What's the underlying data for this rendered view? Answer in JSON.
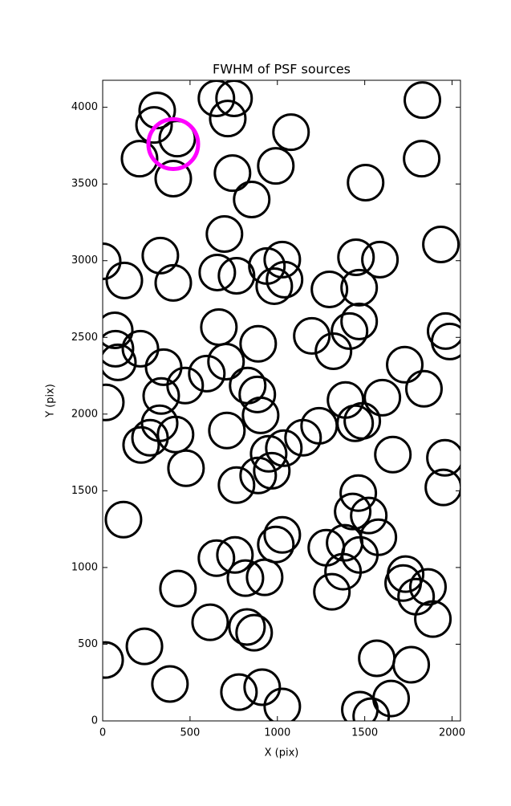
{
  "chart_data": {
    "type": "scatter",
    "title": "FWHM of PSF sources",
    "x_label": "X (pix)",
    "y_label": "Y (pix)",
    "xlim": [
      0,
      2048
    ],
    "ylim": [
      0,
      4176
    ],
    "xticks": [
      0,
      500,
      1000,
      1500,
      2000
    ],
    "yticks": [
      0,
      500,
      1000,
      1500,
      2000,
      2500,
      3000,
      3500,
      4000
    ],
    "grid": false,
    "series": [
      {
        "color": "#000000",
        "x": [
          312,
          294,
          427,
          211,
          404,
          651,
          752,
          716,
          1078,
          991,
          743,
          853,
          1830,
          1826,
          1505,
          697,
          1936,
          0,
          124,
          330,
          404,
          656,
          766,
          940,
          1028,
          982,
          1041,
          1298,
          1450,
          1468,
          1587,
          69,
          73,
          87,
          216,
          665,
          890,
          1197,
          1321,
          1413,
          1468,
          1963,
          1986,
          349,
          596,
          706,
          472,
          335,
          18,
          830,
          885,
          904,
          711,
          326,
          271,
          220,
          417,
          477,
          1147,
          1239,
          1390,
          1445,
          1486,
          1601,
          1729,
          1839,
          1661,
          1959,
          1950,
          1037,
          950,
          968,
          890,
          766,
          1463,
          1431,
          1523,
          119,
          1028,
          991,
          757,
          651,
          817,
          927,
          431,
          1280,
          1385,
          1472,
          1578,
          1376,
          1312,
          1734,
          1720,
          1862,
          1794,
          1890,
          615,
          826,
          867,
          239,
          14,
          1569,
          1766,
          385,
          780,
          913,
          1028,
          1472,
          1651,
          1537
        ],
        "y": [
          3979,
          3885,
          3796,
          3665,
          3535,
          4058,
          4058,
          3927,
          3838,
          3618,
          3571,
          3399,
          4047,
          3665,
          3509,
          3174,
          3106,
          2996,
          2871,
          3033,
          2855,
          2923,
          2902,
          2965,
          3007,
          2834,
          2876,
          2813,
          3022,
          2824,
          3007,
          2546,
          2426,
          2337,
          2426,
          2567,
          2458,
          2510,
          2410,
          2541,
          2604,
          2541,
          2473,
          2306,
          2264,
          2342,
          2186,
          2118,
          2076,
          2186,
          2128,
          1992,
          1893,
          1940,
          1846,
          1799,
          1867,
          1647,
          1846,
          1924,
          2092,
          1940,
          1956,
          2107,
          2322,
          2165,
          1736,
          1715,
          1522,
          1778,
          1741,
          1631,
          1600,
          1537,
          1485,
          1365,
          1339,
          1312,
          1213,
          1150,
          1082,
          1061,
          931,
          936,
          863,
          1129,
          1161,
          1082,
          1197,
          973,
          842,
          957,
          899,
          873,
          810,
          664,
          643,
          612,
          575,
          486,
          397,
          408,
          366,
          241,
          188,
          220,
          94,
          73,
          146,
          31
        ]
      },
      {
        "color": "#ff00ff",
        "x": [
          404
        ],
        "y": [
          3760
        ]
      }
    ]
  }
}
